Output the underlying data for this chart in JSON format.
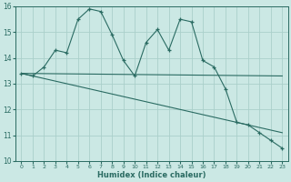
{
  "xlabel": "Humidex (Indice chaleur)",
  "bg_color": "#cbe8e4",
  "grid_color": "#aacfca",
  "line_color": "#2a6b62",
  "xlim": [
    -0.5,
    23.5
  ],
  "ylim": [
    10,
    16
  ],
  "x": [
    0,
    1,
    2,
    3,
    4,
    5,
    6,
    7,
    8,
    9,
    10,
    11,
    12,
    13,
    14,
    15,
    16,
    17,
    18,
    19,
    20,
    21,
    22,
    23
  ],
  "y_jagged": [
    13.4,
    13.3,
    13.65,
    14.3,
    14.2,
    15.5,
    15.9,
    15.8,
    14.9,
    13.9,
    13.3,
    14.6,
    15.1,
    14.3,
    15.5,
    15.4,
    13.9,
    13.65,
    12.8,
    11.5,
    11.4,
    11.1,
    10.8,
    10.5
  ],
  "y_line1_start": 13.4,
  "y_line1_end": 13.3,
  "y_line2_start": 13.4,
  "y_line2_end": 11.1,
  "xticks": [
    0,
    1,
    2,
    3,
    4,
    5,
    6,
    7,
    8,
    9,
    10,
    11,
    12,
    13,
    14,
    15,
    16,
    17,
    18,
    19,
    20,
    21,
    22,
    23
  ],
  "yticks": [
    10,
    11,
    12,
    13,
    14,
    15,
    16
  ]
}
